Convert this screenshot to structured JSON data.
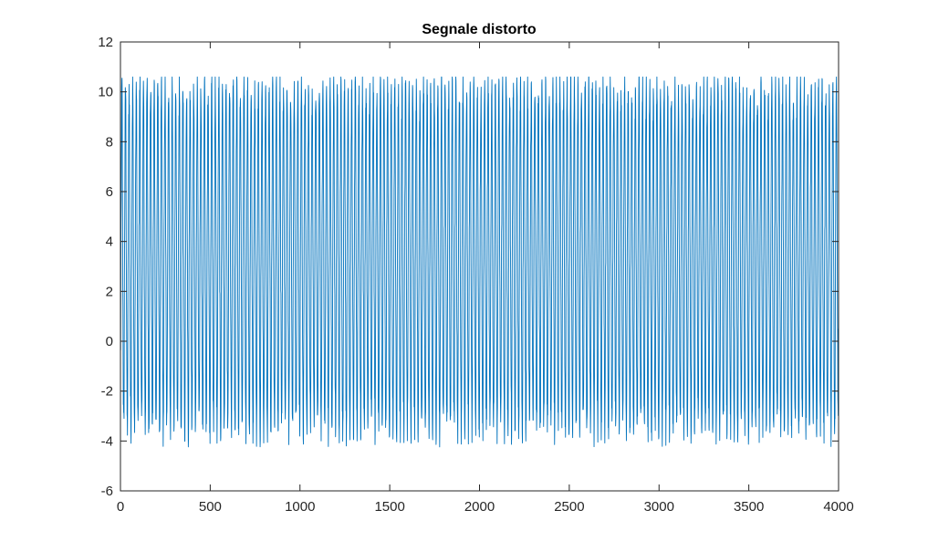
{
  "chart_data": {
    "type": "line",
    "title": "Segnale distorto",
    "xlabel": "",
    "ylabel": "",
    "xlim": [
      0,
      4000
    ],
    "ylim": [
      -6,
      12
    ],
    "x_ticks": [
      0,
      500,
      1000,
      1500,
      2000,
      2500,
      3000,
      3500,
      4000
    ],
    "y_ticks": [
      -6,
      -4,
      -2,
      0,
      2,
      4,
      6,
      8,
      10,
      12
    ],
    "grid": false,
    "legend": "none",
    "line_color": "#0072BD",
    "series": [
      {
        "sample_count": 4000,
        "cycle_length_samples": 20,
        "high_level": 9.3,
        "low_level": -2.6,
        "envelope_peak_max": 10.6,
        "envelope_trough_min": -5.3,
        "start_value": 0.5,
        "end_value": 0.5
      }
    ]
  }
}
